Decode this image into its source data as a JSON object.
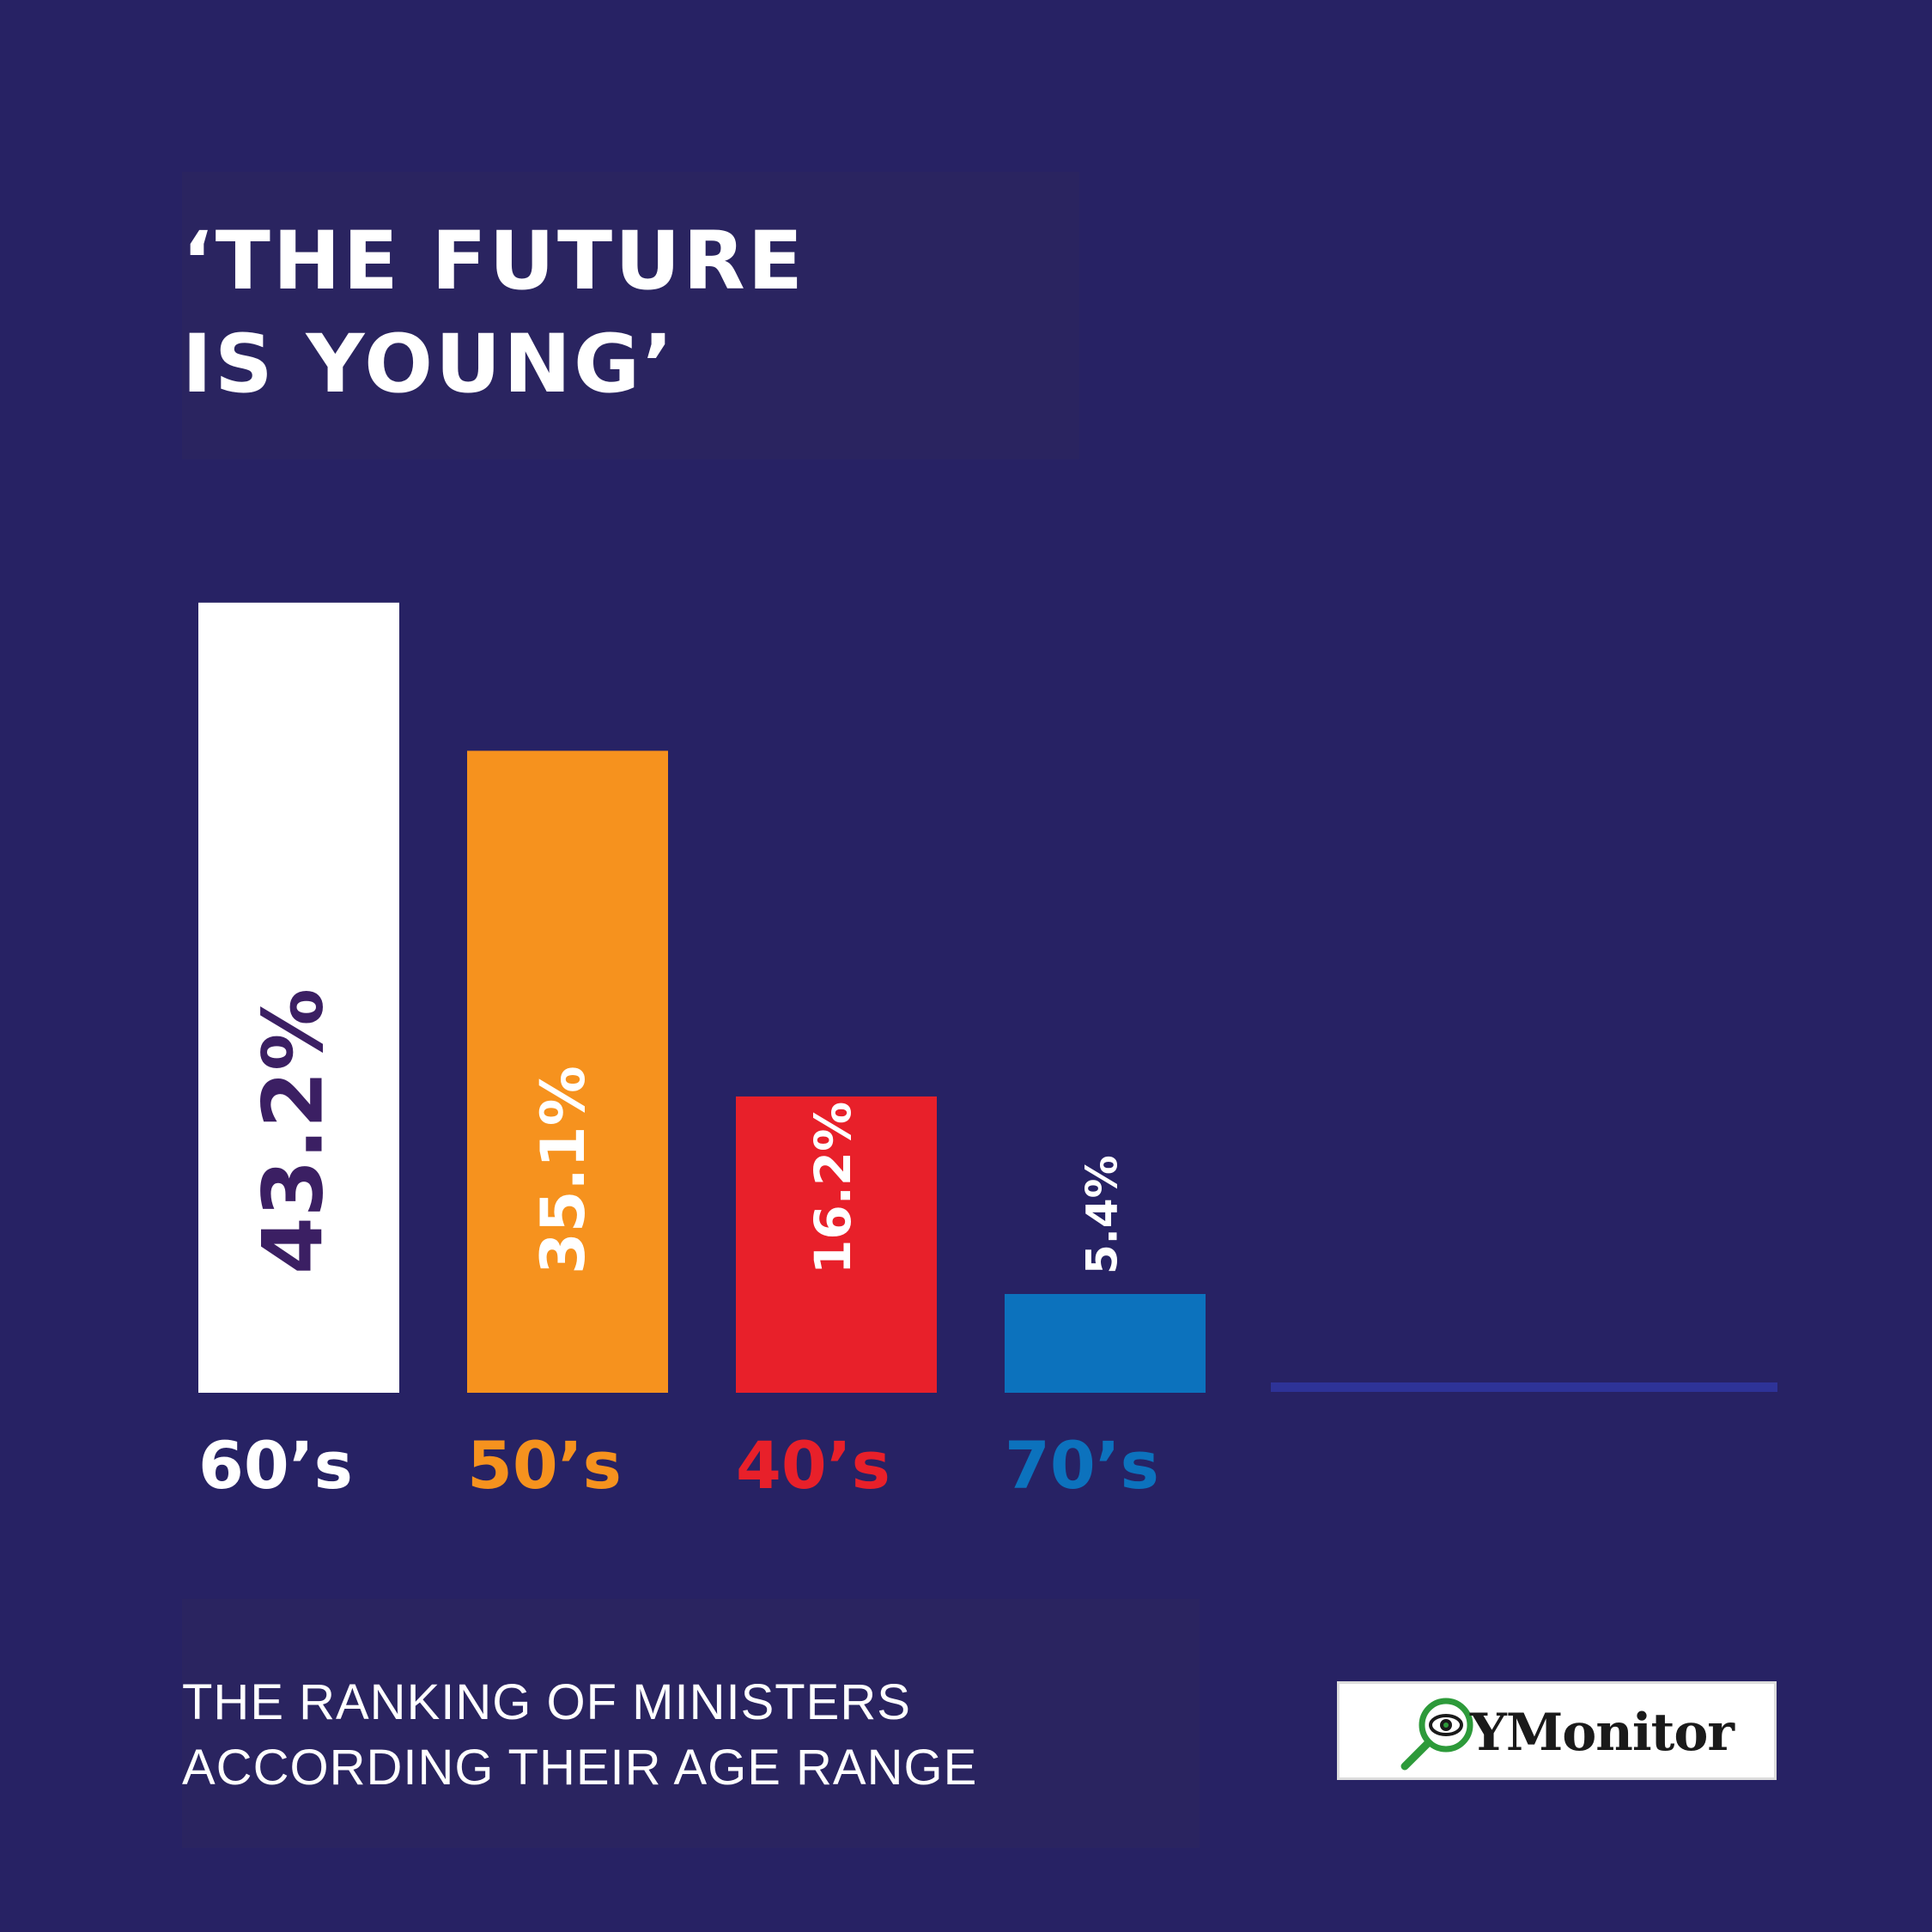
{
  "title": {
    "line1": "‘THE FUTURE",
    "line2": "IS YOUNG’"
  },
  "subtitle": {
    "line1": "THE RANKING OF MINISTERS",
    "line2": "ACCORDING THEIR AGE RANGE"
  },
  "logo": {
    "text": "YMonitor",
    "icon": "magnifier-eye-icon"
  },
  "chart_data": {
    "type": "bar",
    "categories": [
      "60’s",
      "50’s",
      "40’s",
      "70’s"
    ],
    "values": [
      43.2,
      35.1,
      16.2,
      5.4
    ],
    "value_labels": [
      "43.2%",
      "35.1%",
      "16.2%",
      "5.4%"
    ],
    "colors": [
      "#ffffff",
      "#f6921e",
      "#e8202a",
      "#0c72bd"
    ],
    "value_label_colors": [
      "#3b1f63",
      "#ffffff",
      "#ffffff",
      "#ffffff"
    ],
    "category_label_colors": [
      "#ffffff",
      "#f6921e",
      "#e8202a",
      "#0c72bd"
    ],
    "baseline_color": "#2e3398",
    "background": "#272264",
    "xlabel": "",
    "ylabel": "",
    "grid": false,
    "legend": "none"
  }
}
